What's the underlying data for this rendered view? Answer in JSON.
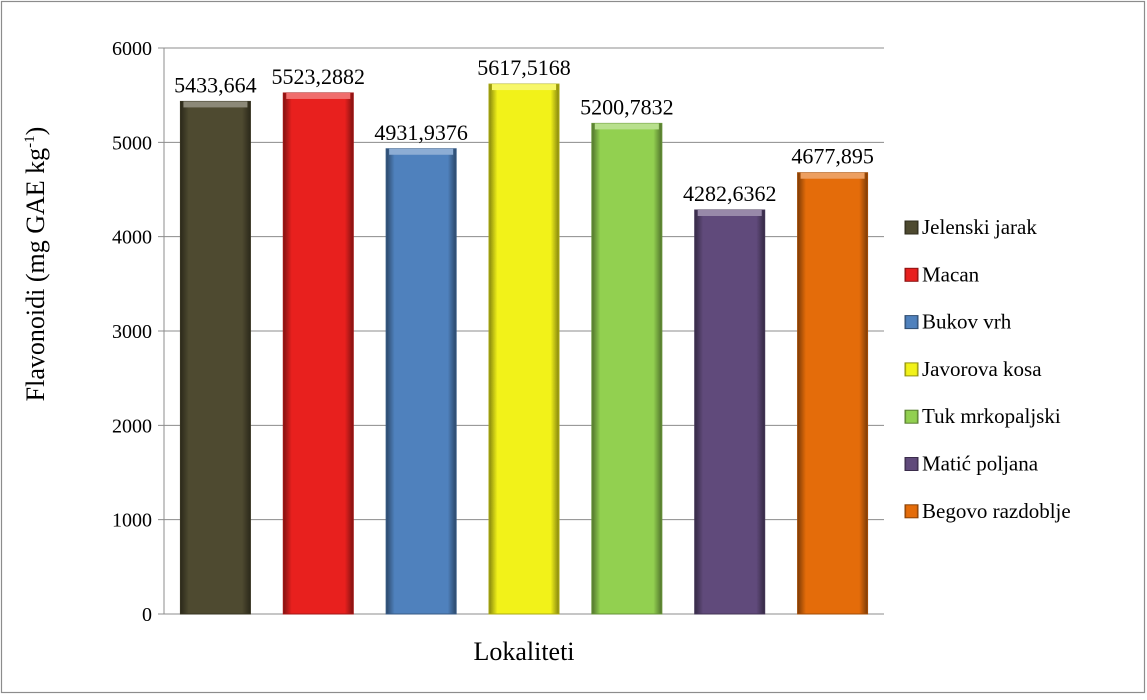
{
  "chart_data": {
    "type": "bar",
    "title": "",
    "xlabel": "Lokaliteti",
    "ylabel": "Flavonoidi (mg GAE kg",
    "ylabel_sup": "-1",
    "ylabel_close": ")",
    "ylim": [
      0,
      6000
    ],
    "yticks": [
      "0",
      "1000",
      "2000",
      "3000",
      "4000",
      "5000",
      "6000"
    ],
    "grid": true,
    "legend_position": "right",
    "categories": [
      "Jelenski jarak",
      "Macan",
      "Bukov vrh",
      "Javorova kosa",
      "Tuk mrkopaljski",
      "Matić poljana",
      "Begovo razdoblje"
    ],
    "values": [
      5433.664,
      5523.2882,
      4931.9376,
      5617.5168,
      5200.7832,
      4282.6362,
      4677.895
    ],
    "data_labels": [
      "5433,664",
      "5523,2882",
      "4931,9376",
      "5617,5168",
      "5200,7832",
      "4282,6362",
      "4677,895"
    ],
    "colors": [
      "#4e4a30",
      "#e8201e",
      "#4f81bd",
      "#f2f219",
      "#92d050",
      "#604a7b",
      "#e46c0a"
    ]
  }
}
